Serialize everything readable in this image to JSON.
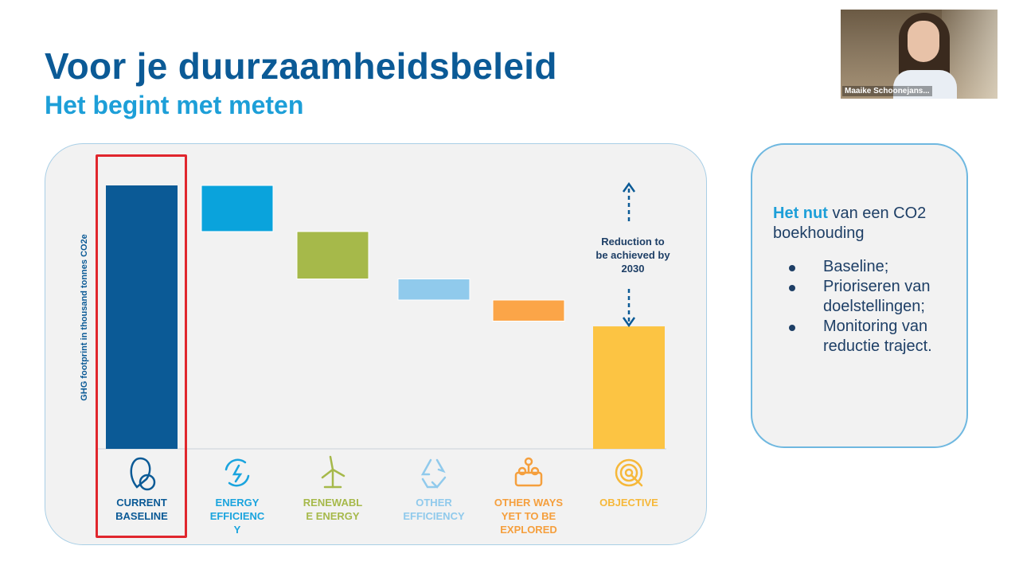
{
  "slide": {
    "title": "Voor je duurzaamheidsbeleid",
    "subtitle": "Het begint met meten"
  },
  "colors": {
    "title": "#0b5a96",
    "subtitle": "#1d9fd8",
    "highlight": "#e0262d"
  },
  "chart_data": {
    "type": "bar",
    "subtype": "waterfall",
    "ylabel": "GHG footprint in thousand tonnes CO2e",
    "grid": false,
    "legend": "none",
    "ylim": [
      0,
      100
    ],
    "categories": [
      {
        "key": "current_baseline",
        "label_lines": [
          "CURRENT",
          "BASELINE"
        ],
        "icon": "location-co2-icon",
        "color": "#0b5a96",
        "label_color": "#0b5a96",
        "start": 0,
        "end": 100
      },
      {
        "key": "energy_efficiency",
        "label_lines": [
          "ENERGY",
          "EFFICIENC",
          "Y"
        ],
        "icon": "energy-cycle-icon",
        "color": "#0aa3dc",
        "label_color": "#1aa4de",
        "start": 82.5,
        "end": 100
      },
      {
        "key": "renewable_energy",
        "label_lines": [
          "RENEWABL",
          "E ENERGY"
        ],
        "icon": "wind-turbine-icon",
        "color": "#a6b94a",
        "label_color": "#a6b94a",
        "start": 64.5,
        "end": 82.5
      },
      {
        "key": "other_efficiency",
        "label_lines": [
          "OTHER",
          "EFFICIENCY"
        ],
        "icon": "recycle-icon",
        "color": "#90caec",
        "label_color": "#90caec",
        "start": 56.5,
        "end": 64.5
      },
      {
        "key": "other_ways",
        "label_lines": [
          "OTHER WAYS",
          "YET TO BE",
          "EXPLORED"
        ],
        "icon": "people-icon",
        "color": "#fba548",
        "label_color": "#f59f3d",
        "start": 48.5,
        "end": 56.5
      },
      {
        "key": "objective",
        "label_lines": [
          "OBJECTIVE"
        ],
        "icon": "target-icon",
        "color": "#fcc443",
        "label_color": "#f6b83a",
        "start": 0,
        "end": 46.5
      }
    ],
    "annotation": {
      "lines": [
        "Reduction to",
        "be achieved by",
        "2030"
      ]
    },
    "highlighted_category": "current_baseline"
  },
  "side_panel": {
    "heading_strong": "Het nut",
    "heading_rest": " van een CO2 boekhouding",
    "items": [
      "Baseline;",
      "Prioriseren van doelstellingen;",
      "Monitoring van reductie traject."
    ]
  },
  "webcam": {
    "name": "Maaike Schoonejans..."
  }
}
